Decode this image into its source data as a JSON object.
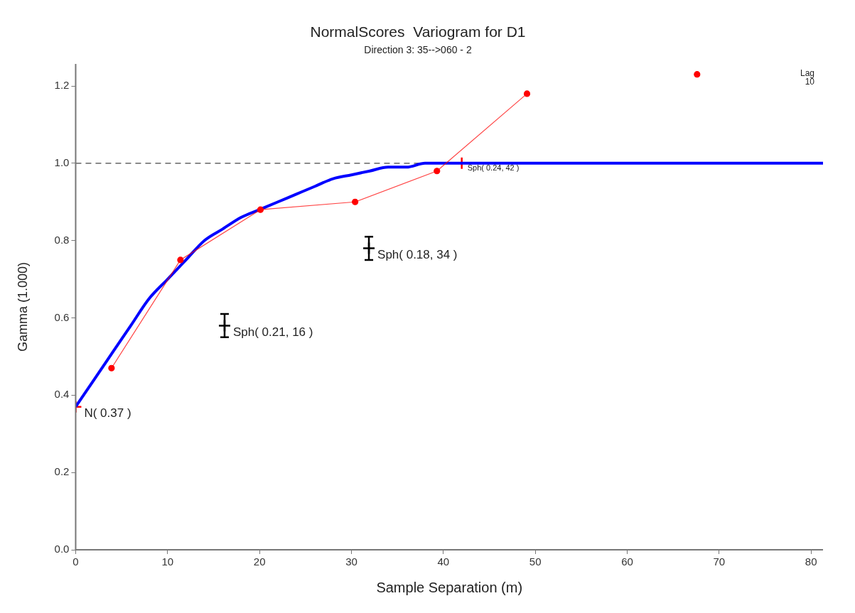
{
  "chart_data": {
    "type": "line",
    "title": "NormalScores  Variogram for D1",
    "subtitle": "Direction 3: 35-->060 - 2",
    "xlabel": "Sample Separation (m)",
    "ylabel": "Gamma (1.000)",
    "xlim": [
      0,
      81.3
    ],
    "xticks": [
      0,
      10,
      20,
      30,
      40,
      50,
      60,
      70,
      80
    ],
    "ylim": [
      0,
      1.257
    ],
    "yticks": [
      {
        "value": 0,
        "label": "0.0"
      },
      0.2,
      0.4,
      0.6,
      0.8,
      {
        "value": 1,
        "label": "1.0"
      },
      1.2
    ],
    "grid": false,
    "legend": false,
    "ref_lines": [
      {
        "axis": "y",
        "value": 1,
        "color": "#444444",
        "line_style": "dashed"
      }
    ],
    "series": [
      {
        "color": "#ff0000",
        "marker": "circle",
        "x": [
          3.9,
          11.4,
          20.1,
          30.4,
          39.3,
          49.1,
          58,
          67.6
        ],
        "values": [
          0.47,
          0.75,
          0.88,
          0.9,
          0.98,
          1.18,
          null,
          1.23
        ]
      },
      {
        "color": "#0000ff",
        "marker": "none",
        "x": [
          0,
          2,
          4,
          6,
          8,
          10,
          12,
          14,
          16,
          18,
          20,
          22,
          24,
          26,
          28,
          30,
          32,
          34,
          36,
          38,
          40,
          42,
          81.3
        ],
        "values": [
          0.37,
          0.44,
          0.51,
          0.58,
          0.65,
          0.7,
          0.75,
          0.8,
          0.83,
          0.86,
          0.88,
          0.9,
          0.92,
          0.94,
          0.96,
          0.97,
          0.98,
          0.99,
          0.99,
          1.0,
          1.0,
          1.0,
          1.0
        ]
      },
      {
        "type": "scatter",
        "color": "#000000",
        "marker": "cross",
        "x": [
          16.2,
          31.9
        ],
        "values": [
          0.58,
          0.78
        ],
        "errors": [
          0.03,
          0.03
        ]
      },
      {
        "type": "scatter",
        "color": "#ff0000",
        "marker": "cross",
        "x": [
          0,
          42
        ],
        "values": [
          0.37,
          1.0
        ]
      }
    ],
    "annotations": [
      {
        "text": "N( 0.37 )",
        "x": 0,
        "y": 0.37
      },
      {
        "text": "Sph( 0.21, 16 )",
        "x": 16.2,
        "y": 0.58
      },
      {
        "text": "Sph( 0.18, 34 )",
        "x": 31.9,
        "y": 0.78
      },
      {
        "text": "Sph( 0.24, 42 )",
        "x": 42,
        "y": 1.0
      },
      "Lag 10"
    ]
  }
}
